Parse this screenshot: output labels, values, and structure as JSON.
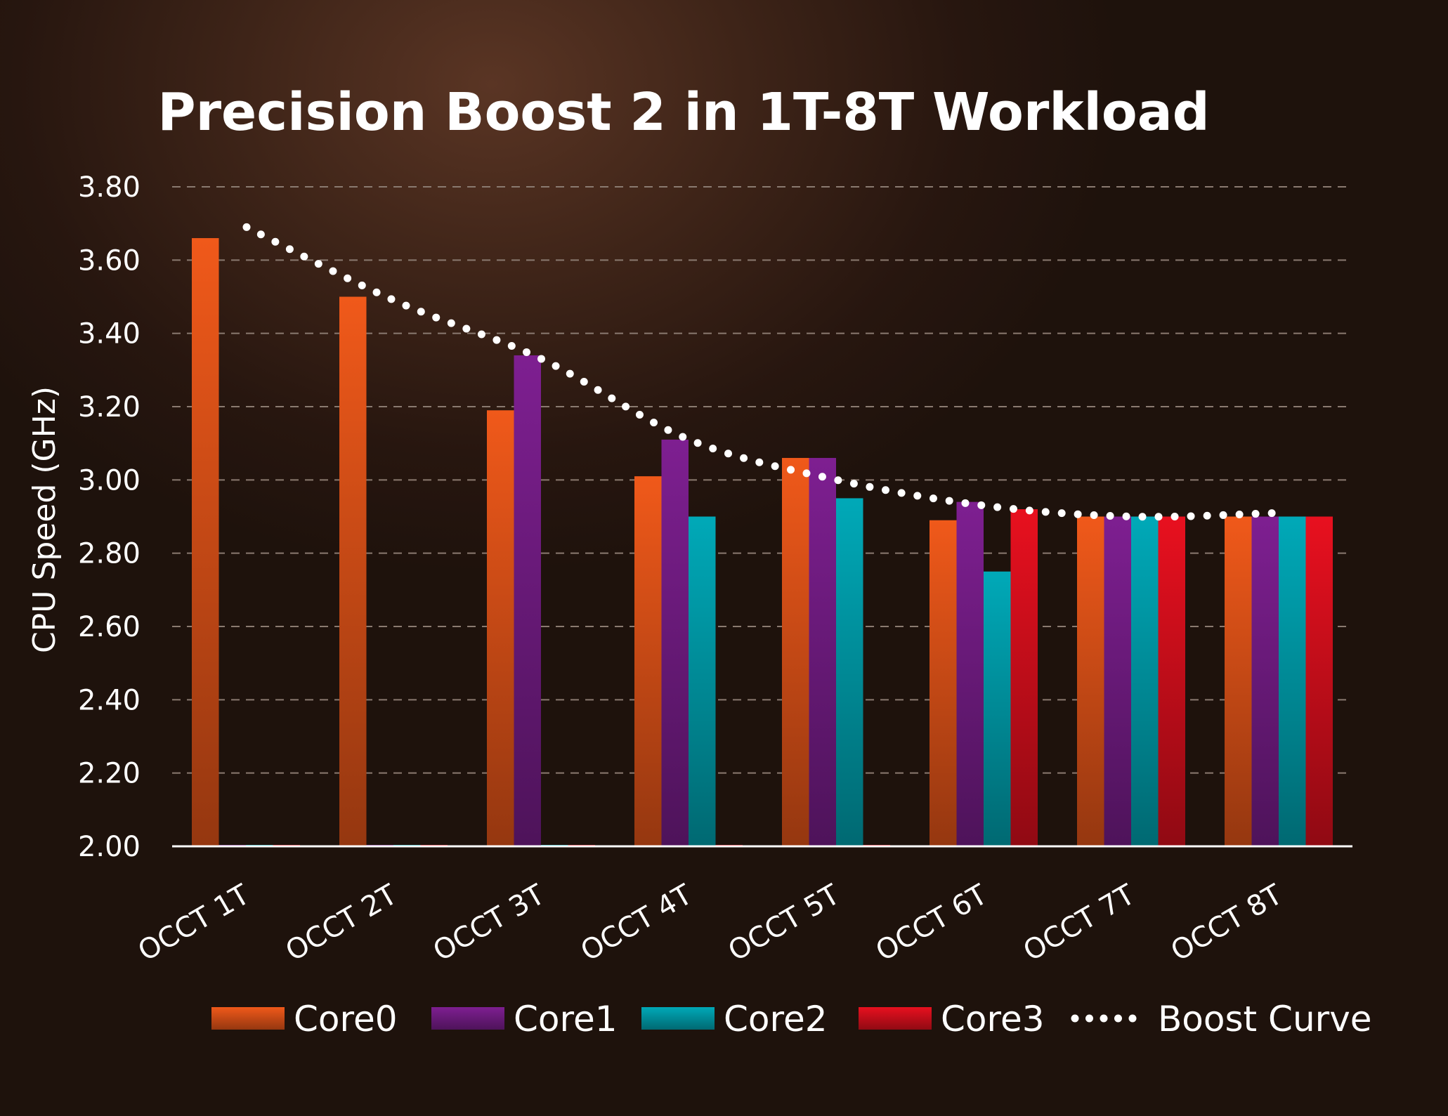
{
  "chart_data": {
    "type": "bar",
    "title": "Precision Boost 2 in 1T-8T Workload",
    "xlabel": "",
    "ylabel": "CPU Speed (GHz)",
    "ylim": [
      2.0,
      3.8
    ],
    "yticks": [
      "2.00",
      "2.20",
      "2.40",
      "2.60",
      "2.80",
      "3.00",
      "3.20",
      "3.40",
      "3.60",
      "3.80"
    ],
    "categories": [
      "OCCT 1T",
      "OCCT 2T",
      "OCCT 3T",
      "OCCT 4T",
      "OCCT 5T",
      "OCCT 6T",
      "OCCT 7T",
      "OCCT 8T"
    ],
    "series": [
      {
        "name": "Core0",
        "color": "#f0591a",
        "values": [
          3.66,
          3.5,
          3.19,
          3.01,
          3.06,
          2.89,
          2.9,
          2.9
        ]
      },
      {
        "name": "Core1",
        "color": "#7e1f91",
        "values": [
          null,
          null,
          3.34,
          3.11,
          3.06,
          2.94,
          2.9,
          2.9
        ]
      },
      {
        "name": "Core2",
        "color": "#00a9b8",
        "values": [
          null,
          null,
          null,
          2.9,
          2.95,
          2.75,
          2.9,
          2.9
        ]
      },
      {
        "name": "Core3",
        "color": "#e8101f",
        "values": [
          null,
          null,
          null,
          null,
          null,
          2.92,
          2.9,
          2.9
        ]
      }
    ],
    "line_series": {
      "name": "Boost Curve",
      "style": "dotted",
      "color": "#ffffff",
      "values": [
        3.69,
        3.49,
        3.33,
        3.11,
        3.0,
        2.93,
        2.9,
        2.91
      ]
    },
    "grid": true,
    "legend_position": "bottom"
  }
}
